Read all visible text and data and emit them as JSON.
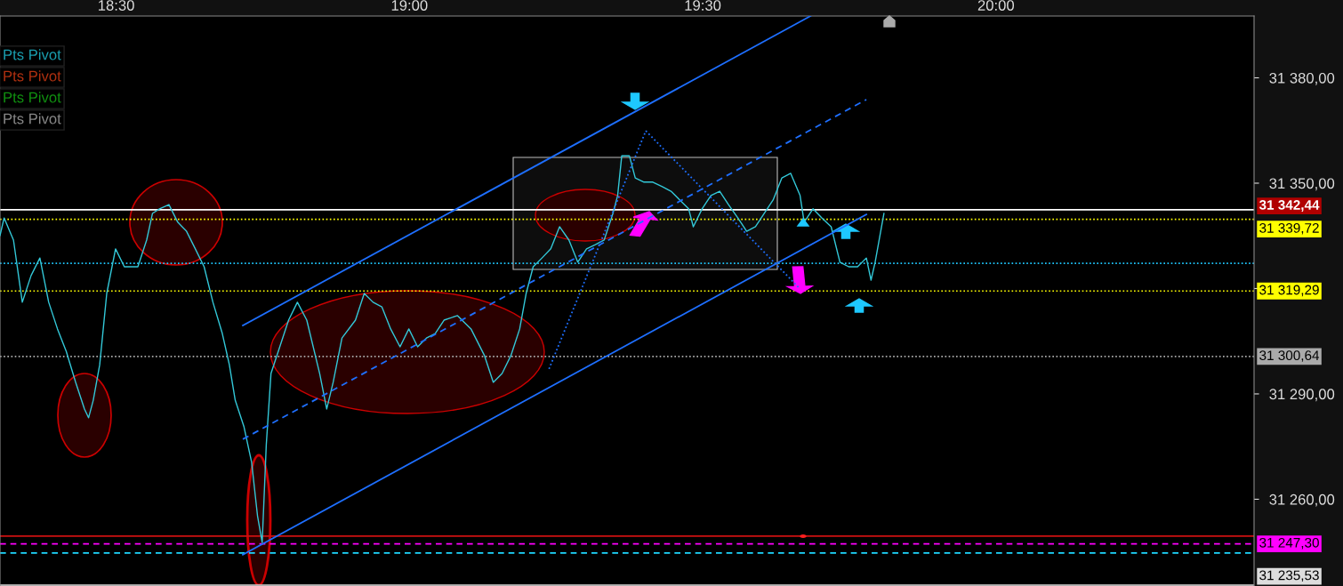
{
  "chart_data": {
    "type": "line",
    "xlim": [
      18.302,
      20.44
    ],
    "xticks": [
      {
        "value": 18.5,
        "label": "18:30"
      },
      {
        "value": 19.0,
        "label": "19:00"
      },
      {
        "value": 19.5,
        "label": "19:30"
      },
      {
        "value": 20.0,
        "label": "20:00"
      }
    ],
    "ylim": [
      31235.3,
      31397.6
    ],
    "yticks": [
      {
        "value": 31260,
        "label": "31 260,00"
      },
      {
        "value": 31290,
        "label": "31 290,00"
      },
      {
        "value": 31320,
        "label": null
      },
      {
        "value": 31350,
        "label": "31 350,00"
      },
      {
        "value": 31380,
        "label": "31 380,00"
      }
    ],
    "grid": false,
    "series": [
      {
        "color": "#33c8d8",
        "x": [
          18.302,
          18.309,
          18.325,
          18.34,
          18.355,
          18.37,
          18.385,
          18.4,
          18.415,
          18.431,
          18.446,
          18.453,
          18.461,
          18.472,
          18.484,
          18.499,
          18.514,
          18.537,
          18.552,
          18.562,
          18.574,
          18.59,
          18.605,
          18.62,
          18.635,
          18.65,
          18.665,
          18.681,
          18.693,
          18.703,
          18.718,
          18.731,
          18.741,
          18.749,
          18.756,
          18.764,
          18.779,
          18.794,
          18.809,
          18.825,
          18.847,
          18.859,
          18.87,
          18.885,
          18.908,
          18.923,
          18.938,
          18.953,
          18.968,
          18.984,
          18.999,
          19.014,
          19.029,
          19.044,
          19.059,
          19.082,
          19.105,
          19.128,
          19.143,
          19.158,
          19.173,
          19.188,
          19.199,
          19.211,
          19.226,
          19.241,
          19.256,
          19.272,
          19.287,
          19.302,
          19.317,
          19.332,
          19.347,
          19.355,
          19.362,
          19.375,
          19.385,
          19.4,
          19.415,
          19.431,
          19.446,
          19.461,
          19.476,
          19.484,
          19.499,
          19.514,
          19.529,
          19.544,
          19.56,
          19.575,
          19.59,
          19.605,
          19.62,
          19.635,
          19.65,
          19.666,
          19.673,
          19.688,
          19.703,
          19.719,
          19.734,
          19.749,
          19.764,
          19.779,
          19.787,
          19.794,
          19.809
        ],
        "values": [
          31335.1,
          31340.1,
          31333.8,
          31316.1,
          31323.7,
          31328.7,
          31316.1,
          31308.5,
          31302.1,
          31293.3,
          31285.7,
          31283.2,
          31288.2,
          31298.3,
          31318.6,
          31331.3,
          31326.2,
          31326.2,
          31333.8,
          31341.4,
          31342.7,
          31343.9,
          31338.9,
          31336.3,
          31331.3,
          31326.2,
          31316.1,
          31307.2,
          31298.3,
          31288.2,
          31280.6,
          31270.5,
          31255.3,
          31247.7,
          31275.6,
          31295.8,
          31303.4,
          31311.0,
          31316.1,
          31311.0,
          31295.8,
          31285.7,
          31293.3,
          31305.9,
          31311.0,
          31318.6,
          31316.1,
          31314.8,
          31308.5,
          31303.4,
          31308.5,
          31303.4,
          31305.9,
          31307.2,
          31311.0,
          31312.3,
          31308.5,
          31300.9,
          31293.3,
          31295.8,
          31300.9,
          31308.5,
          31318.6,
          31326.2,
          31328.7,
          31331.3,
          31337.6,
          31333.8,
          31327.5,
          31331.3,
          31332.5,
          31333.8,
          31341.4,
          31346.5,
          31357.8,
          31357.8,
          31351.5,
          31350.3,
          31350.3,
          31349.0,
          31347.7,
          31345.2,
          31342.7,
          31337.6,
          31342.7,
          31346.5,
          31347.7,
          31343.9,
          31340.1,
          31336.3,
          31337.6,
          31341.4,
          31345.2,
          31351.5,
          31352.8,
          31346.5,
          31338.9,
          31342.7,
          31340.1,
          31337.6,
          31327.5,
          31326.2,
          31326.2,
          31328.7,
          31322.4,
          31327.5,
          31341.4
        ]
      },
      {
        "color": "#1e6fff",
        "line_style": "solid",
        "x": [
          18.716,
          19.684
        ],
        "values": [
          31309.5,
          31397.6
        ]
      },
      {
        "color": "#1e6fff",
        "line_style": "solid",
        "x": [
          18.716,
          19.779
        ],
        "values": [
          31244.2,
          31341.1
        ]
      },
      {
        "color": "#1e6fff",
        "line_style": "dashed",
        "x": [
          18.716,
          19.779
        ],
        "values": [
          31277.1,
          31373.8
        ]
      },
      {
        "color": "#1e6fff",
        "line_style": "dotted",
        "x": [
          19.238,
          19.403
        ],
        "values": [
          31297.1,
          31364.9
        ]
      },
      {
        "color": "#1e6fff",
        "line_style": "dotted",
        "x": [
          19.403,
          19.666
        ],
        "values": [
          31364.9,
          31319.9
        ]
      }
    ],
    "ref_lines": [
      {
        "axis": "y",
        "value": 31342.44,
        "label": "31 342,44",
        "color": "#ffffff",
        "line_style": "solid"
      },
      {
        "axis": "y",
        "value": 31339.72,
        "label": "31 339,72",
        "color": "#ffff00",
        "line_style": "dotted"
      },
      {
        "axis": "y",
        "value": 31327.2,
        "color": "#1ec8ff",
        "line_style": "dotted"
      },
      {
        "axis": "y",
        "value": 31319.29,
        "label": "31 319,29",
        "color": "#ffff00",
        "line_style": "dotted"
      },
      {
        "axis": "y",
        "value": 31300.64,
        "label": "31 300,64",
        "color": "#aaaaaa",
        "line_style": "dotted"
      },
      {
        "axis": "y",
        "value": 31249.5,
        "color": "#cc1010",
        "line_style": "solid"
      },
      {
        "axis": "y",
        "value": 31247.3,
        "label": "31 247,30",
        "color": "#ff00ff",
        "line_style": "dashed"
      },
      {
        "axis": "y",
        "value": 31244.7,
        "color": "#1ed8ff",
        "line_style": "dashed"
      },
      {
        "axis": "y",
        "value": 31235.53,
        "label": "31 235,53",
        "color": "#dddddd",
        "line_style": "solid"
      }
    ],
    "annotations": [
      "Pts Pivot",
      "Pts Pivot",
      "Pts Pivot",
      "Pts Pivot"
    ]
  }
}
